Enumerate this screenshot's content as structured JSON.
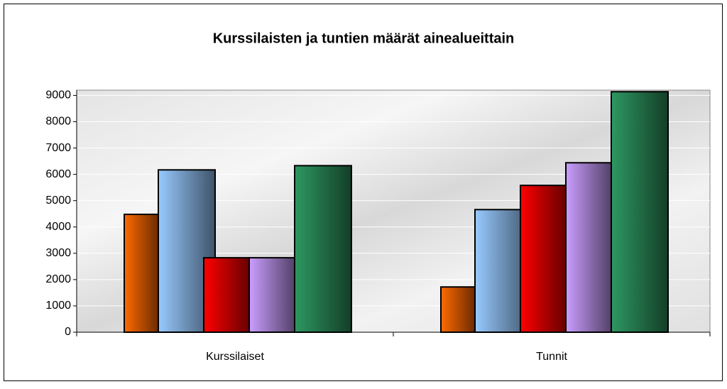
{
  "chart_data": {
    "type": "bar",
    "title": "Kurssilaisten ja tuntien määrät ainealueittain",
    "categories": [
      "Kurssilaiset",
      "Tunnit"
    ],
    "series": [
      {
        "color": "#f06000",
        "values": [
          4480,
          1720
        ]
      },
      {
        "color": "#8ab8e8",
        "values": [
          6170,
          4660
        ]
      },
      {
        "color": "#e80000",
        "values": [
          2830,
          5580
        ]
      },
      {
        "color": "#b890e8",
        "values": [
          2830,
          6440
        ]
      },
      {
        "color": "#2a8a58",
        "values": [
          6330,
          9140
        ]
      }
    ],
    "ylim": [
      0,
      9200
    ],
    "yticks": [
      0,
      1000,
      2000,
      3000,
      4000,
      5000,
      6000,
      7000,
      8000,
      9000
    ],
    "grid": true
  }
}
